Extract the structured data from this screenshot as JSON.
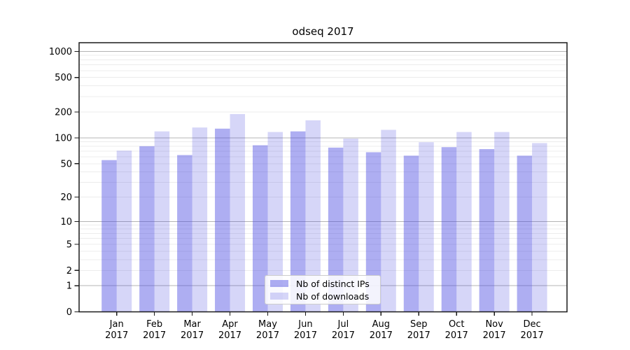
{
  "chart_data": {
    "type": "bar",
    "title": "odseq 2017",
    "y_scale": "log10(1+x)",
    "grid": true,
    "legend_position": "lower center",
    "categories": [
      "Jan",
      "Feb",
      "Mar",
      "Apr",
      "May",
      "Jun",
      "Jul",
      "Aug",
      "Sep",
      "Oct",
      "Nov",
      "Dec"
    ],
    "category_year": "2017",
    "series": [
      {
        "name": "Nb of distinct IPs",
        "color": "rgba(70,70,225,0.44)",
        "values": [
          55,
          80,
          63,
          128,
          82,
          119,
          77,
          68,
          62,
          78,
          74,
          62
        ]
      },
      {
        "name": "Nb of downloads",
        "color": "rgba(70,70,225,0.22)",
        "values": [
          71,
          119,
          132,
          189,
          117,
          160,
          98,
          124,
          89,
          117,
          117,
          87
        ]
      }
    ],
    "y_ticks": [
      0,
      1,
      2,
      5,
      10,
      20,
      50,
      100,
      200,
      500,
      1000
    ],
    "ylim": [
      0,
      1260
    ],
    "xlabel": "",
    "ylabel": "",
    "colors": {
      "minor_gridline": "#ececec",
      "major_gridline": "#b4b4b4",
      "major_gridline_values": [
        1,
        10,
        100,
        1000
      ],
      "spine": "#1a1a1a",
      "tick_label": "#000000"
    }
  }
}
